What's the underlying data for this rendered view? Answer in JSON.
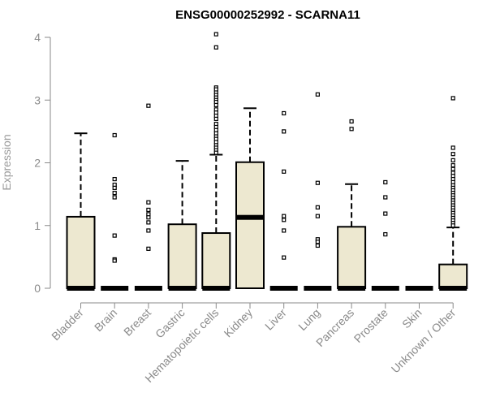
{
  "chart_data": {
    "type": "box",
    "title": "ENSG00000252992 - SCARNA11",
    "xlabel": "",
    "ylabel": "Expression",
    "ylim": [
      0,
      4.1
    ],
    "y_ticks": [
      "0",
      "1",
      "2",
      "3",
      "4"
    ],
    "grid": false,
    "colors": {
      "box_fill": "#ede8d0",
      "box_stroke": "#000000",
      "axis": "#8a8a8a"
    },
    "categories": [
      "Bladder",
      "Brain",
      "Breast",
      "Gastric",
      "Hematopoietic cells",
      "Kidney",
      "Liver",
      "Lung",
      "Pancreas",
      "Prostate",
      "Skin",
      "Unknown / Other"
    ],
    "boxes": [
      {
        "category": "Bladder",
        "q1": 0,
        "median": 0,
        "q3": 1.14,
        "whisker_low": 0,
        "whisker_high": 2.47,
        "outliers": []
      },
      {
        "category": "Brain",
        "q1": 0,
        "median": 0,
        "q3": 0,
        "whisker_low": 0,
        "whisker_high": 0,
        "outliers": [
          2.44,
          1.74,
          1.65,
          1.6,
          1.52,
          1.45,
          0.84,
          0.46,
          0.44
        ]
      },
      {
        "category": "Breast",
        "q1": 0,
        "median": 0,
        "q3": 0,
        "whisker_low": 0,
        "whisker_high": 0,
        "outliers": [
          2.91,
          1.37,
          1.25,
          1.18,
          1.13,
          1.05,
          0.92,
          0.63
        ]
      },
      {
        "category": "Gastric",
        "q1": 0,
        "median": 0,
        "q3": 1.02,
        "whisker_low": 0,
        "whisker_high": 2.03,
        "outliers": []
      },
      {
        "category": "Hematopoietic cells",
        "q1": 0,
        "median": 0,
        "q3": 0.88,
        "whisker_low": 0,
        "whisker_high": 2.13,
        "outliers": [
          4.05,
          3.84,
          3.2,
          3.17,
          3.12,
          3.08,
          3.04,
          3.0,
          2.97,
          2.92,
          2.85,
          2.8,
          2.75,
          2.7,
          2.62,
          2.57,
          2.52,
          2.47,
          2.42,
          2.38,
          2.33,
          2.28,
          2.24,
          2.2,
          2.16
        ]
      },
      {
        "category": "Kidney",
        "q1": 0,
        "median": 1.13,
        "q3": 2.01,
        "whisker_low": 0,
        "whisker_high": 2.87,
        "outliers": []
      },
      {
        "category": "Liver",
        "q1": 0,
        "median": 0,
        "q3": 0,
        "whisker_low": 0,
        "whisker_high": 0,
        "outliers": [
          2.79,
          2.5,
          1.86,
          1.15,
          1.09,
          0.92,
          0.49
        ]
      },
      {
        "category": "Lung",
        "q1": 0,
        "median": 0,
        "q3": 0,
        "whisker_low": 0,
        "whisker_high": 0,
        "outliers": [
          3.09,
          1.68,
          1.29,
          1.15,
          0.78,
          0.74,
          0.68
        ]
      },
      {
        "category": "Pancreas",
        "q1": 0,
        "median": 0,
        "q3": 0.98,
        "whisker_low": 0,
        "whisker_high": 1.66,
        "outliers": [
          2.66,
          2.54
        ]
      },
      {
        "category": "Prostate",
        "q1": 0,
        "median": 0,
        "q3": 0,
        "whisker_low": 0,
        "whisker_high": 0,
        "outliers": [
          1.69,
          1.45,
          1.19,
          0.86
        ]
      },
      {
        "category": "Skin",
        "q1": 0,
        "median": 0,
        "q3": 0,
        "whisker_low": 0,
        "whisker_high": 0,
        "outliers": []
      },
      {
        "category": "Unknown / Other",
        "q1": 0,
        "median": 0,
        "q3": 0.38,
        "whisker_low": 0,
        "whisker_high": 0.97,
        "outliers": [
          3.03,
          2.24,
          2.14,
          2.04,
          1.96,
          1.9,
          1.84,
          1.79,
          1.74,
          1.69,
          1.64,
          1.6,
          1.56,
          1.52,
          1.48,
          1.44,
          1.4,
          1.36,
          1.32,
          1.28,
          1.24,
          1.2,
          1.16,
          1.12,
          1.08,
          1.04,
          1.0
        ]
      }
    ]
  }
}
